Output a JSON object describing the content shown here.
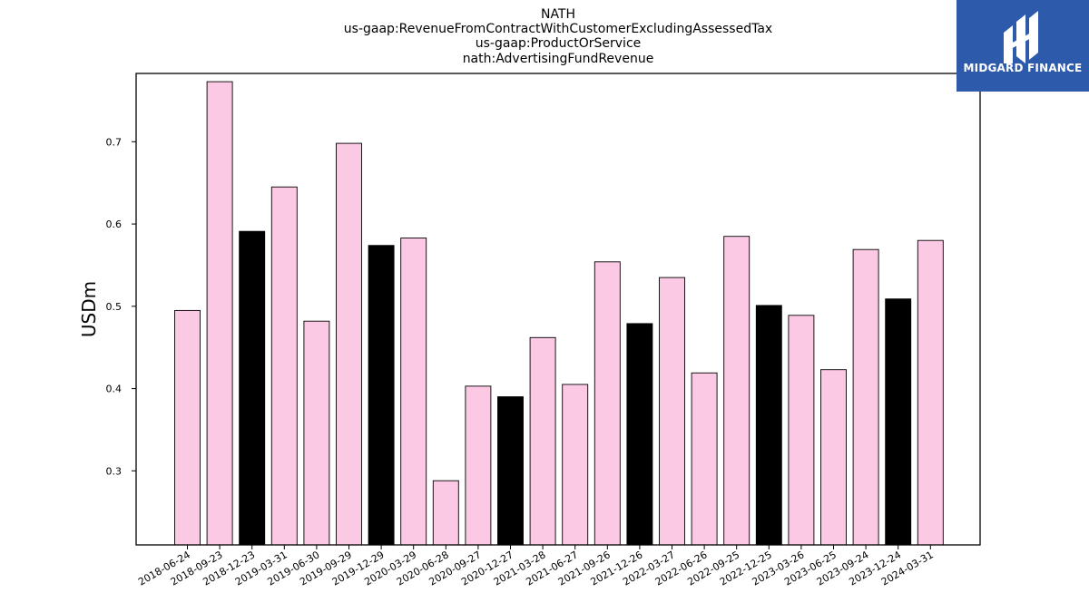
{
  "brand": {
    "name": "MIDGARD FINANCE",
    "icon": "midgard-logo-icon",
    "color": "#2d5aab"
  },
  "chart_data": {
    "type": "bar",
    "title_lines": [
      "NATH",
      "us-gaap:RevenueFromContractWithCustomerExcludingAssessedTax",
      "us-gaap:ProductOrService",
      "nath:AdvertisingFundRevenue"
    ],
    "xlabel": "",
    "ylabel": "USDm",
    "ylim": [
      0.21,
      0.783
    ],
    "yticks": [
      0.3,
      0.4,
      0.5,
      0.6,
      0.7
    ],
    "grid": false,
    "categories": [
      "2018-06-24",
      "2018-09-23",
      "2018-12-23",
      "2019-03-31",
      "2019-06-30",
      "2019-09-29",
      "2019-12-29",
      "2020-03-29",
      "2020-06-28",
      "2020-09-27",
      "2020-12-27",
      "2021-03-28",
      "2021-06-27",
      "2021-09-26",
      "2021-12-26",
      "2022-03-27",
      "2022-06-26",
      "2022-09-25",
      "2022-12-25",
      "2023-03-26",
      "2023-06-25",
      "2023-09-24",
      "2023-12-24",
      "2024-03-31"
    ],
    "values": [
      0.495,
      0.773,
      0.591,
      0.645,
      0.482,
      0.698,
      0.574,
      0.583,
      0.288,
      0.403,
      0.39,
      0.462,
      0.405,
      0.554,
      0.479,
      0.535,
      0.419,
      0.585,
      0.501,
      0.489,
      0.423,
      0.569,
      0.509,
      0.58
    ],
    "highlight_indices": [
      2,
      6,
      10,
      14,
      18,
      22
    ],
    "colors": {
      "bar": "#fcc9e4",
      "highlight": "#000000",
      "edge": "#000000"
    }
  }
}
